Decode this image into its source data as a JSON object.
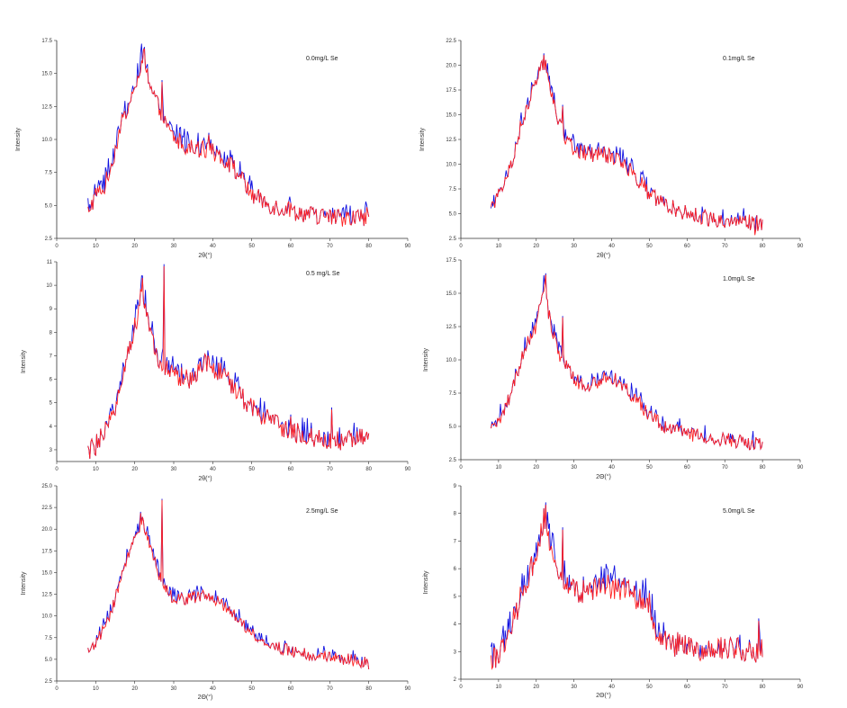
{
  "figure": {
    "domain": "xrd-panels",
    "colors": {
      "series_red": "#ff2020",
      "series_blue": "#1010e0",
      "axis": "#333333"
    }
  },
  "chart_data": [
    {
      "type": "line",
      "title": "0.0mg/L Se",
      "xlabel": "2θ(°)",
      "ylabel": "Intensity",
      "xlim": [
        0,
        90
      ],
      "ylim": [
        2.5,
        17.5
      ],
      "xticks": [
        "0",
        "10",
        "20",
        "30",
        "40",
        "50",
        "60",
        "70",
        "80",
        "90"
      ],
      "yticks": [
        "2.5",
        "5.0",
        "7.5",
        "10.0",
        "12.5",
        "15.0",
        "17.5"
      ],
      "grid": false,
      "profile": {
        "x": [
          8,
          10,
          12,
          14,
          16,
          18,
          20,
          22,
          24,
          26,
          28,
          30,
          34,
          38,
          42,
          46,
          50,
          55,
          60,
          65,
          70,
          75,
          80
        ],
        "y": [
          4.6,
          5.7,
          6.2,
          8.0,
          10.5,
          12.5,
          13.8,
          16.4,
          14.0,
          12.5,
          11.0,
          10.1,
          9.4,
          9.2,
          8.8,
          7.6,
          5.8,
          5.0,
          4.6,
          4.3,
          4.1,
          4.0,
          4.2
        ]
      },
      "noise": 0.7,
      "spikes": [
        {
          "x": 22.5,
          "y": 17.0
        },
        {
          "x": 27,
          "y": 14.5
        },
        {
          "x": 39,
          "y": 10.5
        },
        {
          "x": 79.5,
          "y": 5.0
        }
      ],
      "series": [
        {
          "name": "",
          "color": "#1010e0"
        },
        {
          "name": "",
          "color": "#ff2020"
        }
      ]
    },
    {
      "type": "line",
      "title": "0.1mg/L Se",
      "xlabel": "2θ(°)",
      "ylabel": "Intensity",
      "xlim": [
        0,
        90
      ],
      "ylim": [
        2.5,
        22.5
      ],
      "xticks": [
        "0",
        "10",
        "20",
        "30",
        "40",
        "50",
        "60",
        "70",
        "80",
        "90"
      ],
      "yticks": [
        "2.5",
        "5.0",
        "7.5",
        "10.0",
        "12.5",
        "15.0",
        "17.5",
        "20.0",
        "22.5"
      ],
      "grid": false,
      "profile": {
        "x": [
          8,
          10,
          12,
          14,
          16,
          18,
          20,
          22,
          24,
          26,
          28,
          30,
          34,
          38,
          42,
          46,
          50,
          55,
          60,
          65,
          70,
          75,
          80
        ],
        "y": [
          5.3,
          6.8,
          8.2,
          11.0,
          14.0,
          16.0,
          18.5,
          20.5,
          17.5,
          14.0,
          12.5,
          11.5,
          11.0,
          11.0,
          10.5,
          9.0,
          7.0,
          5.8,
          5.0,
          4.6,
          4.3,
          4.2,
          4.0
        ]
      },
      "noise": 0.8,
      "spikes": [
        {
          "x": 22,
          "y": 21.2
        },
        {
          "x": 27,
          "y": 16.0
        },
        {
          "x": 78,
          "y": 3.0
        }
      ],
      "series": [
        {
          "name": "",
          "color": "#1010e0"
        },
        {
          "name": "",
          "color": "#ff2020"
        }
      ]
    },
    {
      "type": "line",
      "title": "0.5 mg/L Se",
      "xlabel": "2θ(°)",
      "ylabel": "Intensity",
      "xlim": [
        0,
        90
      ],
      "ylim": [
        2.5,
        11
      ],
      "xticks": [
        "0",
        "10",
        "20",
        "30",
        "40",
        "50",
        "60",
        "70",
        "80",
        "90"
      ],
      "yticks": [
        "3",
        "4",
        "5",
        "6",
        "7",
        "8",
        "9",
        "10",
        "11"
      ],
      "grid": false,
      "profile": {
        "x": [
          8,
          10,
          12,
          14,
          16,
          18,
          20,
          22,
          24,
          26,
          28,
          30,
          34,
          38,
          42,
          46,
          50,
          55,
          60,
          65,
          70,
          75,
          80
        ],
        "y": [
          2.9,
          3.2,
          3.6,
          4.2,
          5.5,
          7.0,
          8.2,
          9.8,
          8.0,
          7.0,
          6.5,
          6.2,
          6.0,
          6.8,
          6.3,
          5.5,
          4.8,
          4.2,
          3.8,
          3.5,
          3.4,
          3.4,
          3.5
        ]
      },
      "noise": 0.45,
      "spikes": [
        {
          "x": 22,
          "y": 10.4
        },
        {
          "x": 27.5,
          "y": 10.9
        },
        {
          "x": 60,
          "y": 4.5
        },
        {
          "x": 70.5,
          "y": 4.8
        }
      ],
      "series": [
        {
          "name": "",
          "color": "#1010e0"
        },
        {
          "name": "",
          "color": "#ff2020"
        }
      ]
    },
    {
      "type": "line",
      "title": "1.0mg/L Se",
      "xlabel": "2Θ(°)",
      "ylabel": "Intensity",
      "xlim": [
        0,
        90
      ],
      "ylim": [
        2.5,
        17.5
      ],
      "xticks": [
        "0",
        "10",
        "20",
        "30",
        "40",
        "50",
        "60",
        "70",
        "80",
        "90"
      ],
      "yticks": [
        "2.5",
        "5.0",
        "7.5",
        "10.0",
        "12.5",
        "15.0",
        "17.5"
      ],
      "grid": false,
      "profile": {
        "x": [
          8,
          10,
          12,
          14,
          16,
          18,
          20,
          22,
          24,
          26,
          28,
          30,
          34,
          38,
          42,
          46,
          50,
          55,
          60,
          65,
          70,
          75,
          80
        ],
        "y": [
          4.5,
          5.5,
          6.5,
          8.0,
          10.0,
          11.5,
          12.5,
          15.5,
          12.5,
          10.5,
          9.5,
          8.5,
          8.0,
          8.6,
          8.4,
          7.2,
          5.8,
          4.8,
          4.5,
          4.2,
          4.0,
          3.8,
          3.7
        ]
      },
      "noise": 0.55,
      "spikes": [
        {
          "x": 22.5,
          "y": 16.5
        },
        {
          "x": 27,
          "y": 13.3
        }
      ],
      "series": [
        {
          "name": "",
          "color": "#1010e0"
        },
        {
          "name": "",
          "color": "#ff2020"
        }
      ]
    },
    {
      "type": "line",
      "title": "2.5mg/L Se",
      "xlabel": "2Θ(°)",
      "ylabel": "Intensity",
      "xlim": [
        0,
        90
      ],
      "ylim": [
        2.5,
        25
      ],
      "xticks": [
        "0",
        "10",
        "20",
        "30",
        "40",
        "50",
        "60",
        "70",
        "80",
        "90"
      ],
      "yticks": [
        "2.5",
        "5.0",
        "7.5",
        "10.0",
        "12.5",
        "15.0",
        "17.5",
        "20.0",
        "22.5",
        "25.0"
      ],
      "grid": false,
      "profile": {
        "x": [
          8,
          10,
          12,
          14,
          16,
          18,
          20,
          22,
          24,
          26,
          28,
          30,
          34,
          38,
          42,
          46,
          50,
          55,
          60,
          65,
          70,
          75,
          80
        ],
        "y": [
          5.8,
          7.0,
          8.5,
          10.5,
          13.5,
          16.5,
          19.0,
          21.0,
          18.0,
          15.0,
          13.0,
          12.0,
          12.0,
          12.5,
          11.5,
          10.0,
          8.0,
          6.5,
          6.0,
          5.5,
          5.2,
          5.0,
          4.5
        ]
      },
      "noise": 0.7,
      "spikes": [
        {
          "x": 21.5,
          "y": 22.0
        },
        {
          "x": 27,
          "y": 23.5
        }
      ],
      "series": [
        {
          "name": "",
          "color": "#1010e0"
        },
        {
          "name": "",
          "color": "#ff2020"
        }
      ]
    },
    {
      "type": "line",
      "title": "5.0mg/L Se",
      "xlabel": "2Θ(°)",
      "ylabel": "Intensity",
      "xlim": [
        0,
        90
      ],
      "ylim": [
        2,
        9
      ],
      "xticks": [
        "0",
        "10",
        "20",
        "30",
        "40",
        "50",
        "60",
        "70",
        "80",
        "90"
      ],
      "yticks": [
        "2",
        "3",
        "4",
        "5",
        "6",
        "7",
        "8",
        "9"
      ],
      "grid": false,
      "profile": {
        "x": [
          8,
          10,
          12,
          14,
          16,
          18,
          20,
          22,
          24,
          26,
          28,
          30,
          34,
          38,
          42,
          46,
          50,
          52,
          55,
          60,
          65,
          70,
          75,
          80
        ],
        "y": [
          2.5,
          3.0,
          3.5,
          4.2,
          5.0,
          5.8,
          6.5,
          7.8,
          6.8,
          6.0,
          5.5,
          5.2,
          5.2,
          5.4,
          5.3,
          5.0,
          4.8,
          3.5,
          3.3,
          3.2,
          3.0,
          3.1,
          3.1,
          3.0
        ]
      },
      "noise": 0.45,
      "spikes": [
        {
          "x": 22.5,
          "y": 8.4
        },
        {
          "x": 27,
          "y": 7.5
        },
        {
          "x": 79,
          "y": 4.2
        }
      ],
      "series": [
        {
          "name": "",
          "color": "#1010e0"
        },
        {
          "name": "",
          "color": "#ff2020"
        }
      ]
    }
  ]
}
